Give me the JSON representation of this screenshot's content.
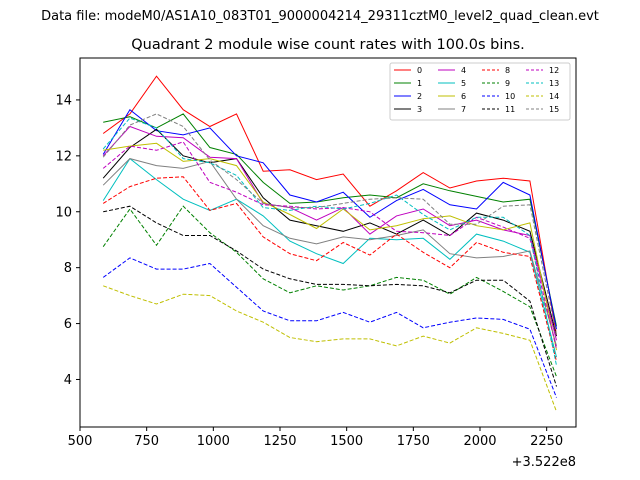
{
  "suptitle": "Data file: modeM0/AS1A10_083T01_9000004214_29311cztM0_level2_quad_clean.evt",
  "chart_data": {
    "type": "line",
    "title": "Quadrant 2 module wise count rates with 100.0s bins.",
    "xlabel": "",
    "ylabel": "",
    "x_offset_label": "+3.522e8",
    "xlim": [
      500,
      2360
    ],
    "ylim": [
      2.3,
      15.5
    ],
    "x_ticks": [
      500,
      750,
      1000,
      1250,
      1500,
      1750,
      2000,
      2250
    ],
    "x_tick_labels": [
      "500",
      "750",
      "1000",
      "1250",
      "1500",
      "1750",
      "2000",
      "2250"
    ],
    "y_ticks": [
      4,
      6,
      8,
      10,
      12,
      14
    ],
    "y_tick_labels": [
      "4",
      "6",
      "8",
      "10",
      "12",
      "14"
    ],
    "legend_position": "top-right",
    "legend_columns": 4,
    "x": [
      587,
      687,
      787,
      887,
      987,
      1087,
      1187,
      1287,
      1387,
      1487,
      1587,
      1687,
      1787,
      1887,
      1987,
      2087,
      2187,
      2287
    ],
    "series": [
      {
        "name": "0",
        "color": "#ff0000",
        "dash": "solid",
        "values": [
          12.8,
          13.5,
          14.85,
          13.65,
          13.05,
          13.5,
          11.45,
          11.5,
          11.15,
          11.35,
          10.2,
          10.75,
          11.4,
          10.85,
          11.1,
          11.2,
          11.1,
          5.6
        ]
      },
      {
        "name": "1",
        "color": "#008000",
        "dash": "solid",
        "values": [
          13.2,
          13.4,
          13.0,
          13.5,
          12.3,
          12.05,
          11.05,
          10.3,
          10.35,
          10.5,
          10.6,
          10.5,
          11.0,
          10.75,
          10.55,
          10.35,
          10.45,
          5.9
        ]
      },
      {
        "name": "2",
        "color": "#0000ff",
        "dash": "solid",
        "values": [
          12.05,
          13.65,
          12.9,
          12.75,
          13.0,
          12.0,
          11.75,
          10.6,
          10.35,
          10.7,
          9.8,
          10.4,
          10.8,
          10.25,
          10.1,
          11.05,
          10.6,
          5.8
        ]
      },
      {
        "name": "3",
        "color": "#000000",
        "dash": "solid",
        "values": [
          11.2,
          12.3,
          12.95,
          12.0,
          11.75,
          11.9,
          10.5,
          9.7,
          9.5,
          9.3,
          9.6,
          9.2,
          9.7,
          9.15,
          9.95,
          9.7,
          9.3,
          5.55
        ]
      },
      {
        "name": "4",
        "color": "#bf00bf",
        "dash": "solid",
        "values": [
          12.0,
          13.05,
          12.7,
          12.65,
          11.95,
          11.9,
          10.3,
          10.15,
          9.7,
          10.15,
          9.2,
          9.85,
          10.1,
          9.5,
          9.7,
          9.35,
          9.15,
          5.4
        ]
      },
      {
        "name": "5",
        "color": "#00bfbf",
        "dash": "solid",
        "values": [
          10.4,
          11.9,
          11.15,
          10.45,
          10.05,
          10.45,
          9.85,
          8.95,
          8.5,
          8.15,
          9.05,
          9.0,
          9.05,
          8.3,
          9.2,
          8.95,
          8.55,
          4.8
        ]
      },
      {
        "name": "6",
        "color": "#bfbf00",
        "dash": "solid",
        "values": [
          12.2,
          12.35,
          12.45,
          11.8,
          11.9,
          11.65,
          10.35,
          9.9,
          9.4,
          10.1,
          9.35,
          9.5,
          9.75,
          9.85,
          9.5,
          9.35,
          9.6,
          5.05
        ]
      },
      {
        "name": "7",
        "color": "#808080",
        "dash": "solid",
        "values": [
          10.95,
          11.9,
          11.65,
          11.55,
          11.8,
          10.45,
          9.5,
          9.05,
          8.85,
          9.1,
          9.0,
          9.15,
          9.35,
          8.5,
          8.35,
          8.4,
          8.6,
          5.2
        ]
      },
      {
        "name": "8",
        "color": "#ff0000",
        "dash": "dashed",
        "values": [
          10.3,
          10.9,
          11.2,
          11.25,
          10.05,
          10.3,
          9.1,
          8.5,
          8.25,
          8.9,
          8.45,
          9.2,
          8.55,
          8.0,
          8.9,
          8.55,
          8.4,
          4.65
        ]
      },
      {
        "name": "9",
        "color": "#008000",
        "dash": "dashed",
        "values": [
          8.75,
          10.1,
          8.8,
          10.2,
          9.25,
          8.55,
          7.6,
          7.1,
          7.35,
          7.2,
          7.35,
          7.65,
          7.55,
          7.05,
          7.65,
          7.15,
          6.6,
          4.1
        ]
      },
      {
        "name": "10",
        "color": "#0000ff",
        "dash": "dashed",
        "values": [
          7.65,
          8.35,
          7.95,
          7.95,
          8.15,
          7.3,
          6.45,
          6.1,
          6.1,
          6.4,
          6.05,
          6.4,
          5.85,
          6.05,
          6.2,
          6.15,
          5.8,
          3.35
        ]
      },
      {
        "name": "11",
        "color": "#000000",
        "dash": "dashed",
        "values": [
          10.0,
          10.2,
          9.6,
          9.15,
          9.15,
          8.6,
          7.95,
          7.6,
          7.4,
          7.4,
          7.35,
          7.4,
          7.35,
          7.1,
          7.55,
          7.55,
          6.8,
          3.75
        ]
      },
      {
        "name": "12",
        "color": "#bf00bf",
        "dash": "dashed",
        "values": [
          11.55,
          12.35,
          12.2,
          12.5,
          11.05,
          10.7,
          10.25,
          10.2,
          10.1,
          10.15,
          10.0,
          9.3,
          9.25,
          9.15,
          9.8,
          9.45,
          9.05,
          5.1
        ]
      },
      {
        "name": "13",
        "color": "#00bfbf",
        "dash": "dashed",
        "values": [
          12.25,
          13.35,
          13.0,
          11.9,
          11.75,
          11.3,
          10.15,
          10.05,
          10.2,
          10.1,
          10.3,
          10.6,
          9.9,
          9.35,
          9.8,
          9.8,
          9.15,
          4.5
        ]
      },
      {
        "name": "14",
        "color": "#bfbf00",
        "dash": "dashed",
        "values": [
          7.35,
          7.0,
          6.7,
          7.05,
          7.0,
          6.45,
          6.05,
          5.5,
          5.35,
          5.45,
          5.45,
          5.2,
          5.55,
          5.3,
          5.85,
          5.65,
          5.4,
          2.85
        ]
      },
      {
        "name": "15",
        "color": "#808080",
        "dash": "dashed",
        "values": [
          11.95,
          13.1,
          13.5,
          13.05,
          11.85,
          11.15,
          10.3,
          10.15,
          10.15,
          10.3,
          10.45,
          10.5,
          10.45,
          9.55,
          9.55,
          10.2,
          10.25,
          5.6
        ]
      }
    ]
  }
}
